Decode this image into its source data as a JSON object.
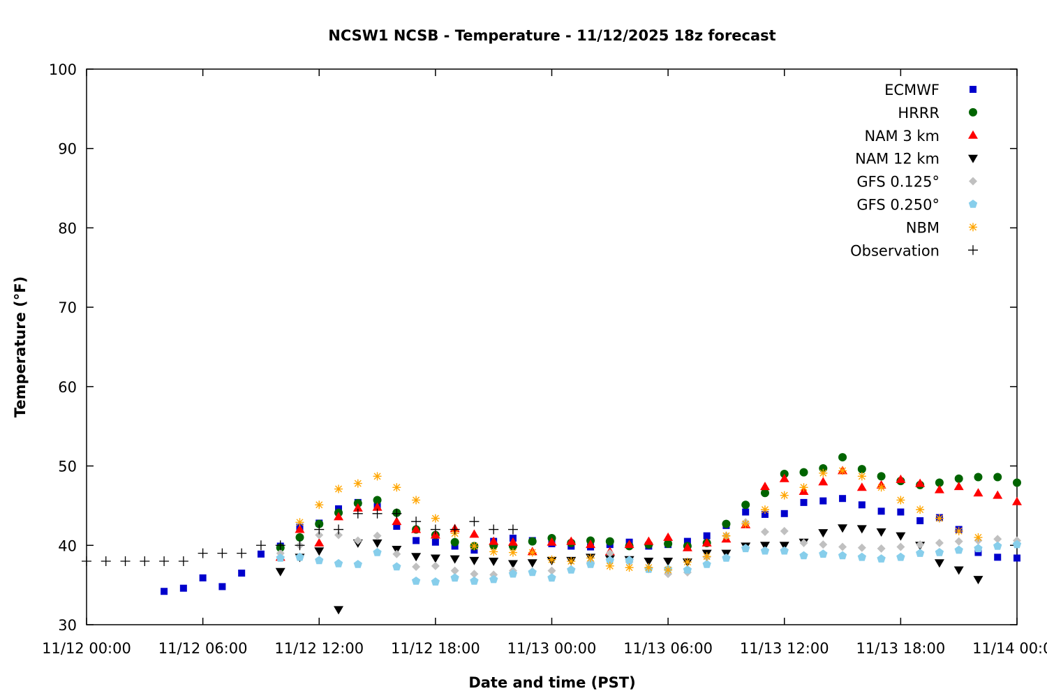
{
  "chart_data": {
    "type": "scatter",
    "title": "NCSW1 NCSB - Temperature - 11/12/2025 18z forecast",
    "xlabel": "Date and time (PST)",
    "ylabel": "Temperature (°F)",
    "ylim": [
      30,
      100
    ],
    "yticks": [
      30,
      40,
      50,
      60,
      70,
      80,
      90,
      100
    ],
    "xticks": [
      "11/12 00:00",
      "11/12 06:00",
      "11/12 12:00",
      "11/12 18:00",
      "11/13 00:00",
      "11/13 06:00",
      "11/13 12:00",
      "11/13 18:00",
      "11/14 00:00"
    ],
    "xlim": [
      "11/12 00:00",
      "11/14 00:00"
    ],
    "x_step": "hourly",
    "grid": false,
    "legend_position": "top-right",
    "series": [
      {
        "name": "ECMWF",
        "marker": "square",
        "color": "#0000cc",
        "values": [
          null,
          null,
          null,
          null,
          34.2,
          34.6,
          35.9,
          34.8,
          36.5,
          38.9,
          39.9,
          42.3,
          42.8,
          44.6,
          45.4,
          44.9,
          42.4,
          40.6,
          40.4,
          39.9,
          39.4,
          40.5,
          40.9,
          40.6,
          40.2,
          39.9,
          39.8,
          40.1,
          40.4,
          39.9,
          40.1,
          40.5,
          41.2,
          42.5,
          44.2,
          43.9,
          44.0,
          45.4,
          45.6,
          45.9,
          45.1,
          44.3,
          44.2,
          43.1,
          43.5,
          42.0,
          39.1,
          38.5,
          38.4
        ]
      },
      {
        "name": "HRRR",
        "marker": "circle",
        "color": "#006400",
        "values": [
          null,
          null,
          null,
          null,
          null,
          null,
          null,
          null,
          null,
          null,
          39.7,
          41.0,
          42.7,
          44.1,
          45.3,
          45.7,
          44.1,
          42.0,
          41.3,
          40.4,
          39.9,
          40.0,
          39.9,
          40.5,
          40.9,
          40.3,
          40.6,
          40.5,
          39.9,
          40.1,
          40.2,
          39.9,
          40.3,
          42.7,
          45.1,
          46.6,
          49.0,
          49.2,
          49.7,
          51.1,
          49.6,
          48.7,
          48.1,
          47.6,
          47.9,
          48.4,
          48.6,
          48.6,
          47.9
        ]
      },
      {
        "name": "NAM 3 km",
        "marker": "triangle-up",
        "color": "#ff0000",
        "values": [
          null,
          null,
          null,
          null,
          null,
          null,
          null,
          null,
          null,
          null,
          38.5,
          42.0,
          40.3,
          43.6,
          44.7,
          44.8,
          43.0,
          42.0,
          41.3,
          42.1,
          41.4,
          40.5,
          40.4,
          39.2,
          40.4,
          40.5,
          40.1,
          39.2,
          40.1,
          40.5,
          41.0,
          39.7,
          40.3,
          40.8,
          42.6,
          47.4,
          48.4,
          46.8,
          48.0,
          49.4,
          47.3,
          47.6,
          48.3,
          47.8,
          47.0,
          47.4,
          46.6,
          46.3,
          45.5
        ]
      },
      {
        "name": "NAM 12 km",
        "marker": "triangle-down",
        "color": "#000000",
        "values": [
          null,
          null,
          null,
          null,
          null,
          null,
          null,
          null,
          null,
          null,
          36.7,
          38.5,
          39.3,
          31.9,
          40.3,
          40.3,
          39.5,
          38.6,
          38.4,
          38.3,
          38.1,
          38.0,
          37.7,
          37.8,
          38.1,
          38.1,
          38.5,
          38.3,
          38.2,
          38.0,
          38.0,
          37.9,
          39.0,
          39.0,
          39.9,
          40.0,
          40.0,
          40.4,
          41.6,
          42.2,
          42.1,
          41.7,
          41.2,
          40.0,
          37.8,
          36.9,
          35.7,
          null,
          null
        ]
      },
      {
        "name": "GFS 0.125°",
        "marker": "diamond",
        "color": "#c0c0c0",
        "values": [
          null,
          null,
          null,
          null,
          null,
          null,
          null,
          null,
          null,
          null,
          39.0,
          40.0,
          41.3,
          41.3,
          40.6,
          41.2,
          38.9,
          37.3,
          37.4,
          36.8,
          36.4,
          36.3,
          36.8,
          36.7,
          36.8,
          37.0,
          37.9,
          39.0,
          37.9,
          37.0,
          36.4,
          36.6,
          38.5,
          41.2,
          42.9,
          41.7,
          41.8,
          40.3,
          40.1,
          39.8,
          39.7,
          39.6,
          39.8,
          40.1,
          40.3,
          40.5,
          40.6,
          40.8,
          40.6
        ]
      },
      {
        "name": "GFS 0.250°",
        "marker": "pentagon",
        "color": "#87ceeb",
        "values": [
          null,
          null,
          null,
          null,
          null,
          null,
          null,
          null,
          null,
          null,
          38.4,
          38.5,
          38.1,
          37.7,
          37.6,
          39.1,
          37.3,
          35.5,
          35.4,
          35.9,
          35.5,
          35.7,
          36.4,
          36.6,
          35.9,
          36.9,
          37.6,
          38.1,
          38.1,
          37.0,
          37.0,
          36.9,
          37.6,
          38.4,
          39.6,
          39.3,
          39.3,
          38.7,
          38.9,
          38.7,
          38.5,
          38.3,
          38.5,
          39.0,
          39.1,
          39.4,
          39.6,
          39.9,
          40.1
        ]
      },
      {
        "name": "NBM",
        "marker": "asterisk",
        "color": "#ffa500",
        "values": [
          null,
          null,
          null,
          null,
          null,
          null,
          null,
          null,
          null,
          null,
          null,
          42.9,
          45.1,
          47.1,
          47.8,
          48.7,
          47.3,
          45.7,
          43.4,
          41.5,
          39.9,
          39.2,
          39.1,
          39.1,
          38.2,
          38.0,
          38.4,
          37.4,
          37.2,
          37.2,
          36.9,
          37.9,
          38.6,
          41.2,
          42.7,
          44.5,
          46.3,
          47.3,
          49.1,
          49.4,
          48.7,
          47.3,
          45.7,
          44.5,
          43.4,
          41.8,
          41.0,
          null,
          null
        ]
      },
      {
        "name": "Observation",
        "marker": "plus",
        "color": "#000000",
        "values": [
          38,
          38,
          38,
          38,
          38,
          38,
          39,
          39,
          39,
          40,
          40,
          40,
          42,
          42,
          44,
          44,
          44,
          43,
          42,
          42,
          43,
          42,
          42,
          null,
          null,
          null,
          null,
          null,
          null,
          null,
          null,
          null,
          null,
          null,
          null,
          null,
          null,
          null,
          null,
          null,
          null,
          null,
          null,
          null,
          null,
          null,
          null,
          null,
          null
        ]
      }
    ]
  }
}
